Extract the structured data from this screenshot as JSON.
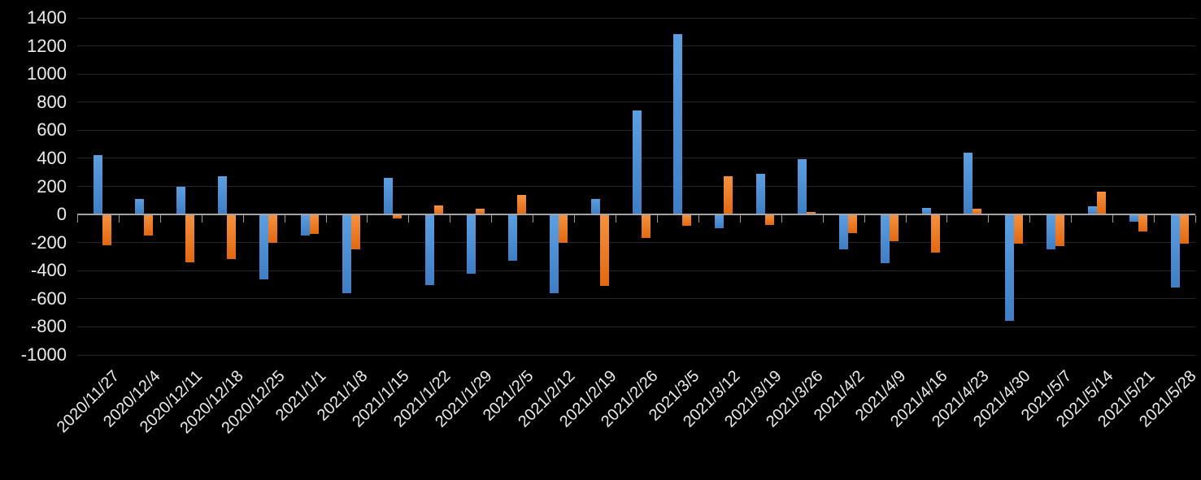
{
  "chart_data": {
    "type": "bar",
    "title": "",
    "legend_position": "none",
    "grid": true,
    "categories": [
      "2020/11/27",
      "2020/12/4",
      "2020/12/11",
      "2020/12/18",
      "2020/12/25",
      "2021/1/1",
      "2021/1/8",
      "2021/1/15",
      "2021/1/22",
      "2021/1/29",
      "2021/2/5",
      "2021/2/12",
      "2021/2/19",
      "2021/2/26",
      "2021/3/5",
      "2021/3/12",
      "2021/3/19",
      "2021/3/26",
      "2021/4/2",
      "2021/4/9",
      "2021/4/16",
      "2021/4/23",
      "2021/4/30",
      "2021/5/7",
      "2021/5/14",
      "2021/5/21",
      "2021/5/28"
    ],
    "series": [
      {
        "name": "blue-series",
        "color_top": "#5C9FE0",
        "color_bottom": "#3F7EC6",
        "values": [
          420,
          110,
          195,
          270,
          -460,
          -150,
          -560,
          260,
          -500,
          -420,
          -330,
          -560,
          110,
          740,
          1285,
          -95,
          290,
          395,
          -250,
          -345,
          45,
          440,
          -760,
          -250,
          60,
          -50,
          -520
        ]
      },
      {
        "name": "orange-series",
        "color_top": "#F49242",
        "color_bottom": "#E2680F",
        "values": [
          -220,
          -150,
          -340,
          -315,
          -200,
          -140,
          -250,
          -30,
          65,
          40,
          140,
          -200,
          -510,
          -170,
          -80,
          270,
          -75,
          15,
          -130,
          -190,
          -270,
          40,
          -210,
          -225,
          160,
          -120,
          -210
        ]
      }
    ],
    "y_axis": {
      "min": -1000,
      "max": 1400,
      "step": 200,
      "tick_labels": [
        "1400",
        "1200",
        "1000",
        "800",
        "600",
        "400",
        "200",
        "0",
        "-200",
        "-400",
        "-600",
        "-800",
        "-1000"
      ]
    },
    "x_axis": {
      "label_rotation_deg": 45
    },
    "colors": {
      "background": "#000000",
      "gridline": "#262626",
      "axis_line": "#A6A6A6",
      "tick": "#9B9B9B",
      "text": "#ECECEC"
    }
  }
}
